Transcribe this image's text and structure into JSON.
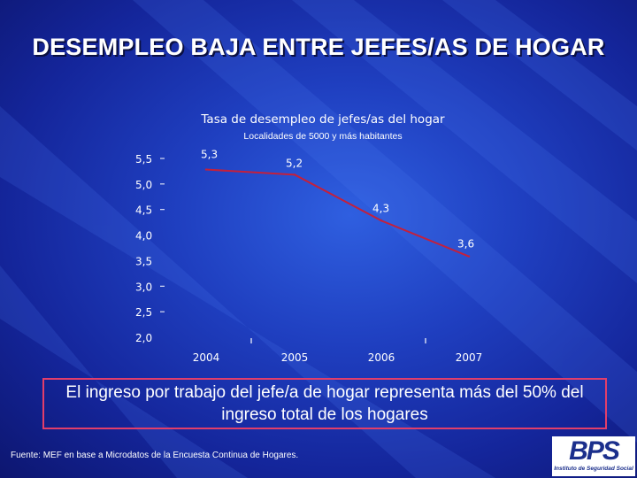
{
  "slide": {
    "title": "DESEMPLEO BAJA ENTRE JEFES/AS DE HOGAR",
    "callout": "El ingreso por trabajo del jefe/a de hogar representa más del 50% del ingreso total de los hogares",
    "source": "Fuente: MEF en base a Microdatos de la Encuesta Continua de Hogares.",
    "logo": {
      "mark": "BPS",
      "subtitle": "Instituto de Seguridad Social"
    }
  },
  "colors": {
    "series_line": "#c4203c",
    "text": "#ffffff",
    "callout_border": "#e23e6a",
    "logo_blue": "#1b2f8c"
  },
  "chart_data": {
    "type": "line",
    "title": "Tasa de desempleo de jefes/as del hogar",
    "subtitle": "Localidades de 5000 y más habitantes",
    "categories": [
      "2004",
      "2005",
      "2006",
      "2007"
    ],
    "series": [
      {
        "values": [
          5.3,
          5.2,
          4.3,
          3.6
        ],
        "labels": [
          "5,3",
          "5,2",
          "4,3",
          "3,6"
        ]
      }
    ],
    "ylim": [
      2.0,
      5.5
    ],
    "yticks": [
      {
        "value": 5.5,
        "label": "5,5"
      },
      {
        "value": 5.0,
        "label": "5,0"
      },
      {
        "value": 4.5,
        "label": "4,5"
      },
      {
        "value": 4.0,
        "label": "4,0"
      },
      {
        "value": 3.5,
        "label": "3,5"
      },
      {
        "value": 3.0,
        "label": "3,0"
      },
      {
        "value": 2.5,
        "label": "2,5"
      },
      {
        "value": 2.0,
        "label": "2,0"
      }
    ],
    "grid": false,
    "legend": "none"
  }
}
